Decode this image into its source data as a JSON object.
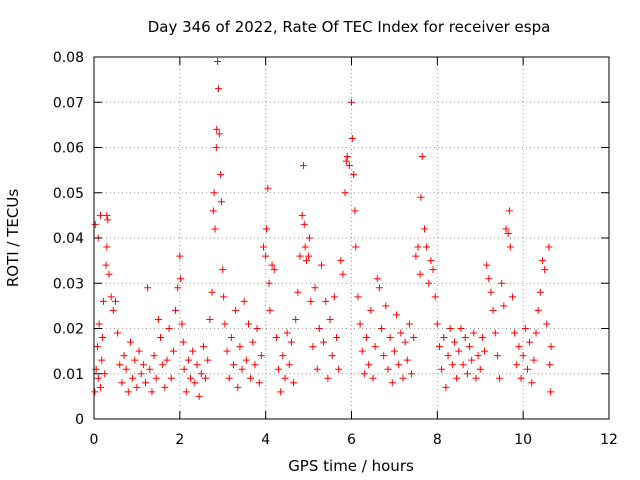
{
  "chart_data": {
    "type": "scatter",
    "title": "Day 346 of 2022, Rate Of TEC Index for receiver espa",
    "xlabel": "GPS time / hours",
    "ylabel": "ROTI / TECUs",
    "xlim": [
      0,
      12
    ],
    "ylim": [
      0,
      0.08
    ],
    "xticks": [
      0,
      2,
      4,
      6,
      8,
      10,
      12
    ],
    "yticks": [
      0,
      0.01,
      0.02,
      0.03,
      0.04,
      0.05,
      0.06,
      0.07,
      0.08
    ],
    "xtick_labels": [
      "0",
      "2",
      "4",
      "6",
      "8",
      "10",
      "12"
    ],
    "ytick_labels": [
      "0",
      "0.01",
      "0.02",
      "0.03",
      "0.04",
      "0.05",
      "0.06",
      "0.07",
      "0.08"
    ],
    "grid": true,
    "marker": "+",
    "color": "#ff0000",
    "series": [
      {
        "name": "ROTI",
        "points": [
          [
            0.02,
            0.006
          ],
          [
            0.05,
            0.011
          ],
          [
            0.08,
            0.016
          ],
          [
            0.1,
            0.009
          ],
          [
            0.12,
            0.021
          ],
          [
            0.15,
            0.007
          ],
          [
            0.18,
            0.013
          ],
          [
            0.2,
            0.018
          ],
          [
            0.22,
            0.026
          ],
          [
            0.25,
            0.01
          ],
          [
            0.03,
            0.043
          ],
          [
            0.1,
            0.04
          ],
          [
            0.15,
            0.045
          ],
          [
            0.3,
            0.045
          ],
          [
            0.32,
            0.044
          ],
          [
            0.3,
            0.038
          ],
          [
            0.35,
            0.032
          ],
          [
            0.28,
            0.034
          ],
          [
            0.4,
            0.027
          ],
          [
            0.45,
            0.024
          ],
          [
            0.5,
            0.026
          ],
          [
            0.55,
            0.019
          ],
          [
            0.6,
            0.012
          ],
          [
            0.65,
            0.008
          ],
          [
            0.7,
            0.014
          ],
          [
            0.75,
            0.011
          ],
          [
            0.8,
            0.006
          ],
          [
            0.85,
            0.017
          ],
          [
            0.9,
            0.009
          ],
          [
            0.95,
            0.013
          ],
          [
            1.0,
            0.007
          ],
          [
            1.05,
            0.015
          ],
          [
            1.1,
            0.01
          ],
          [
            1.15,
            0.012
          ],
          [
            1.2,
            0.008
          ],
          [
            1.25,
            0.029
          ],
          [
            1.3,
            0.011
          ],
          [
            1.35,
            0.006
          ],
          [
            1.4,
            0.014
          ],
          [
            1.45,
            0.009
          ],
          [
            1.5,
            0.022
          ],
          [
            1.55,
            0.018
          ],
          [
            1.6,
            0.012
          ],
          [
            1.65,
            0.007
          ],
          [
            1.7,
            0.013
          ],
          [
            1.75,
            0.02
          ],
          [
            1.8,
            0.009
          ],
          [
            1.85,
            0.015
          ],
          [
            1.9,
            0.024
          ],
          [
            1.95,
            0.029
          ],
          [
            2.0,
            0.036
          ],
          [
            2.02,
            0.031
          ],
          [
            2.05,
            0.021
          ],
          [
            2.08,
            0.017
          ],
          [
            2.1,
            0.011
          ],
          [
            2.15,
            0.006
          ],
          [
            2.2,
            0.013
          ],
          [
            2.25,
            0.009
          ],
          [
            2.3,
            0.015
          ],
          [
            2.35,
            0.008
          ],
          [
            2.4,
            0.012
          ],
          [
            2.45,
            0.005
          ],
          [
            2.5,
            0.01
          ],
          [
            2.55,
            0.016
          ],
          [
            2.6,
            0.009
          ],
          [
            2.65,
            0.013
          ],
          [
            2.7,
            0.022
          ],
          [
            2.75,
            0.028
          ],
          [
            2.78,
            0.046
          ],
          [
            2.8,
            0.05
          ],
          [
            2.82,
            0.042
          ],
          [
            2.85,
            0.06
          ],
          [
            2.86,
            0.064
          ],
          [
            2.88,
            0.079
          ],
          [
            2.9,
            0.073
          ],
          [
            2.92,
            0.063
          ],
          [
            2.95,
            0.054
          ],
          [
            2.97,
            0.048
          ],
          [
            3.0,
            0.033
          ],
          [
            3.02,
            0.027
          ],
          [
            3.05,
            0.021
          ],
          [
            3.1,
            0.015
          ],
          [
            3.15,
            0.009
          ],
          [
            3.2,
            0.018
          ],
          [
            3.25,
            0.012
          ],
          [
            3.3,
            0.024
          ],
          [
            3.35,
            0.007
          ],
          [
            3.4,
            0.016
          ],
          [
            3.45,
            0.011
          ],
          [
            3.5,
            0.026
          ],
          [
            3.55,
            0.013
          ],
          [
            3.6,
            0.021
          ],
          [
            3.65,
            0.009
          ],
          [
            3.7,
            0.017
          ],
          [
            3.75,
            0.012
          ],
          [
            3.8,
            0.02
          ],
          [
            3.85,
            0.008
          ],
          [
            3.9,
            0.014
          ],
          [
            3.95,
            0.038
          ],
          [
            4.0,
            0.036
          ],
          [
            4.02,
            0.042
          ],
          [
            4.05,
            0.051
          ],
          [
            4.08,
            0.03
          ],
          [
            4.1,
            0.024
          ],
          [
            4.15,
            0.034
          ],
          [
            4.2,
            0.033
          ],
          [
            4.25,
            0.018
          ],
          [
            4.3,
            0.011
          ],
          [
            4.35,
            0.006
          ],
          [
            4.4,
            0.014
          ],
          [
            4.45,
            0.009
          ],
          [
            4.5,
            0.019
          ],
          [
            4.55,
            0.012
          ],
          [
            4.6,
            0.017
          ],
          [
            4.65,
            0.008
          ],
          [
            4.7,
            0.022
          ],
          [
            4.75,
            0.028
          ],
          [
            4.8,
            0.036
          ],
          [
            4.85,
            0.045
          ],
          [
            4.88,
            0.056
          ],
          [
            4.9,
            0.043
          ],
          [
            4.92,
            0.038
          ],
          [
            4.95,
            0.035
          ],
          [
            5.0,
            0.036
          ],
          [
            5.02,
            0.04
          ],
          [
            5.05,
            0.026
          ],
          [
            5.1,
            0.016
          ],
          [
            5.15,
            0.029
          ],
          [
            5.2,
            0.011
          ],
          [
            5.25,
            0.02
          ],
          [
            5.3,
            0.034
          ],
          [
            5.35,
            0.017
          ],
          [
            5.4,
            0.026
          ],
          [
            5.45,
            0.009
          ],
          [
            5.5,
            0.022
          ],
          [
            5.55,
            0.014
          ],
          [
            5.6,
            0.027
          ],
          [
            5.65,
            0.018
          ],
          [
            5.7,
            0.011
          ],
          [
            5.75,
            0.035
          ],
          [
            5.8,
            0.032
          ],
          [
            5.85,
            0.05
          ],
          [
            5.88,
            0.057
          ],
          [
            5.9,
            0.058
          ],
          [
            5.95,
            0.056
          ],
          [
            6.0,
            0.07
          ],
          [
            6.02,
            0.062
          ],
          [
            6.05,
            0.054
          ],
          [
            6.08,
            0.046
          ],
          [
            6.1,
            0.038
          ],
          [
            6.15,
            0.027
          ],
          [
            6.2,
            0.021
          ],
          [
            6.25,
            0.015
          ],
          [
            6.3,
            0.01
          ],
          [
            6.35,
            0.018
          ],
          [
            6.4,
            0.012
          ],
          [
            6.45,
            0.024
          ],
          [
            6.5,
            0.009
          ],
          [
            6.55,
            0.016
          ],
          [
            6.6,
            0.031
          ],
          [
            6.65,
            0.029
          ],
          [
            6.7,
            0.02
          ],
          [
            6.75,
            0.014
          ],
          [
            6.8,
            0.025
          ],
          [
            6.85,
            0.011
          ],
          [
            6.9,
            0.018
          ],
          [
            6.95,
            0.008
          ],
          [
            7.0,
            0.015
          ],
          [
            7.05,
            0.023
          ],
          [
            7.1,
            0.012
          ],
          [
            7.15,
            0.019
          ],
          [
            7.2,
            0.009
          ],
          [
            7.25,
            0.017
          ],
          [
            7.3,
            0.013
          ],
          [
            7.35,
            0.021
          ],
          [
            7.4,
            0.01
          ],
          [
            7.45,
            0.018
          ],
          [
            7.5,
            0.036
          ],
          [
            7.55,
            0.038
          ],
          [
            7.6,
            0.032
          ],
          [
            7.62,
            0.049
          ],
          [
            7.65,
            0.058
          ],
          [
            7.7,
            0.042
          ],
          [
            7.75,
            0.038
          ],
          [
            7.8,
            0.03
          ],
          [
            7.85,
            0.035
          ],
          [
            7.9,
            0.033
          ],
          [
            7.95,
            0.027
          ],
          [
            8.0,
            0.021
          ],
          [
            8.05,
            0.016
          ],
          [
            8.1,
            0.011
          ],
          [
            8.15,
            0.018
          ],
          [
            8.2,
            0.007
          ],
          [
            8.25,
            0.014
          ],
          [
            8.3,
            0.02
          ],
          [
            8.35,
            0.012
          ],
          [
            8.4,
            0.017
          ],
          [
            8.45,
            0.009
          ],
          [
            8.5,
            0.015
          ],
          [
            8.55,
            0.02
          ],
          [
            8.6,
            0.012
          ],
          [
            8.65,
            0.018
          ],
          [
            8.7,
            0.01
          ],
          [
            8.75,
            0.016
          ],
          [
            8.8,
            0.013
          ],
          [
            8.85,
            0.019
          ],
          [
            8.9,
            0.009
          ],
          [
            8.95,
            0.014
          ],
          [
            9.0,
            0.011
          ],
          [
            9.05,
            0.018
          ],
          [
            9.1,
            0.015
          ],
          [
            9.15,
            0.034
          ],
          [
            9.2,
            0.031
          ],
          [
            9.25,
            0.028
          ],
          [
            9.3,
            0.024
          ],
          [
            9.35,
            0.019
          ],
          [
            9.4,
            0.014
          ],
          [
            9.45,
            0.009
          ],
          [
            9.5,
            0.03
          ],
          [
            9.55,
            0.025
          ],
          [
            9.6,
            0.042
          ],
          [
            9.65,
            0.041
          ],
          [
            9.68,
            0.046
          ],
          [
            9.7,
            0.038
          ],
          [
            9.75,
            0.027
          ],
          [
            9.8,
            0.019
          ],
          [
            9.85,
            0.012
          ],
          [
            9.9,
            0.016
          ],
          [
            9.95,
            0.009
          ],
          [
            10.0,
            0.014
          ],
          [
            10.05,
            0.02
          ],
          [
            10.1,
            0.011
          ],
          [
            10.15,
            0.017
          ],
          [
            10.2,
            0.008
          ],
          [
            10.25,
            0.013
          ],
          [
            10.3,
            0.019
          ],
          [
            10.35,
            0.024
          ],
          [
            10.4,
            0.028
          ],
          [
            10.45,
            0.035
          ],
          [
            10.5,
            0.033
          ],
          [
            10.55,
            0.021
          ],
          [
            10.6,
            0.038
          ],
          [
            10.62,
            0.012
          ],
          [
            10.64,
            0.006
          ],
          [
            10.65,
            0.016
          ]
        ]
      }
    ]
  }
}
